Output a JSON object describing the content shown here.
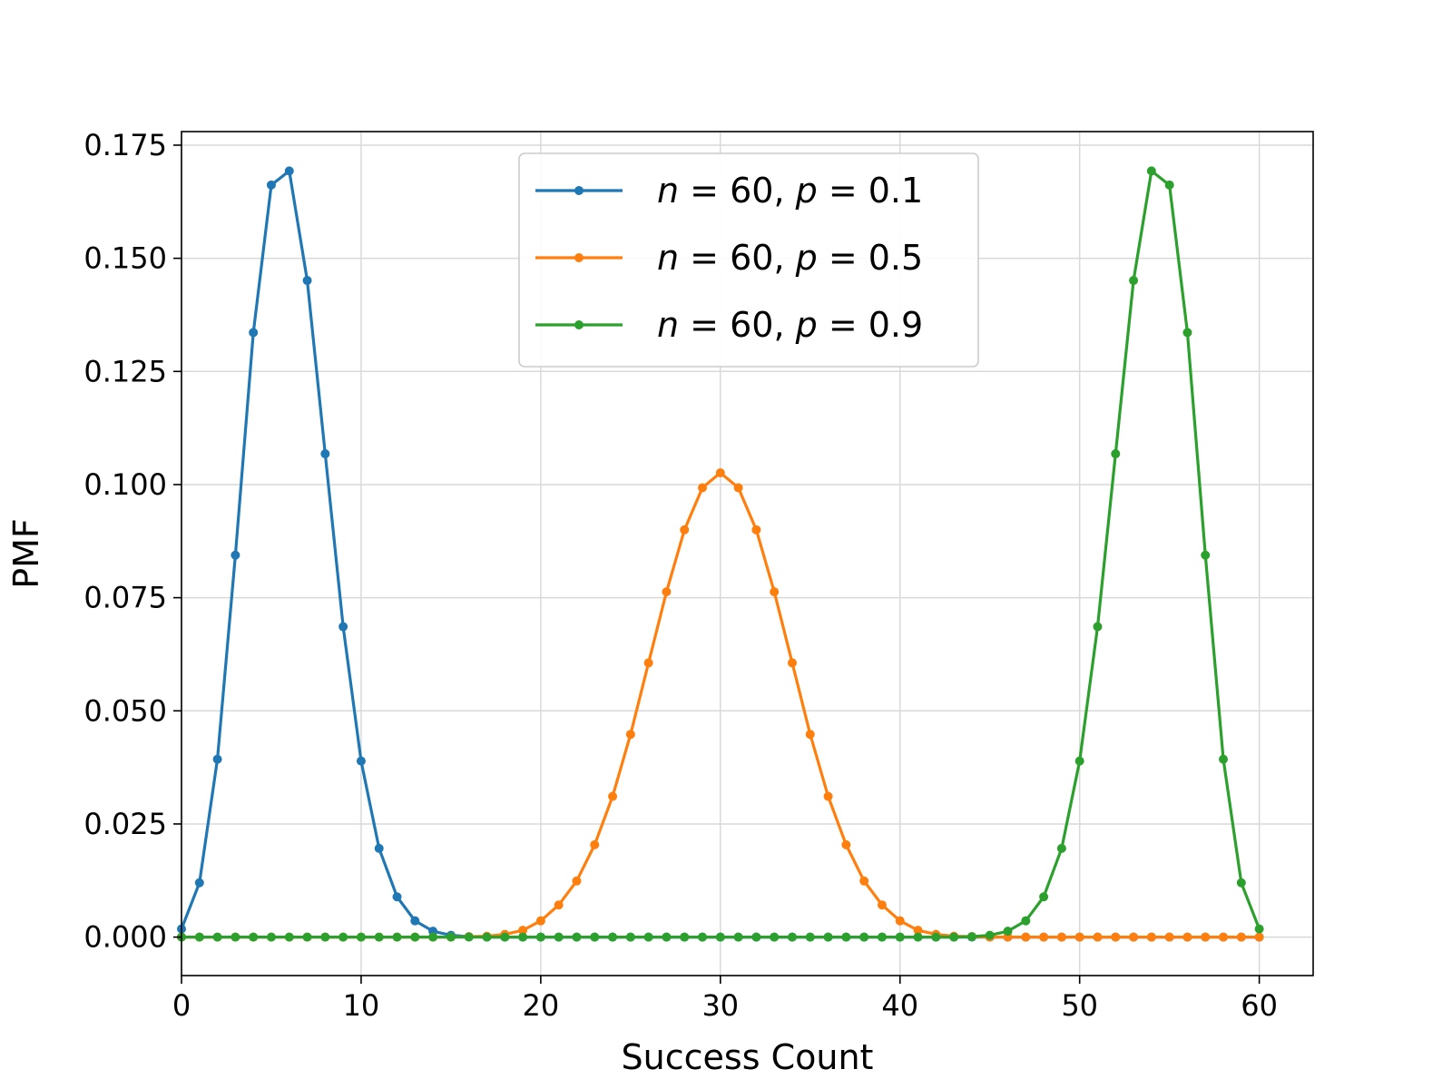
{
  "chart_data": {
    "type": "line",
    "xlabel": "Success Count",
    "ylabel": "PMF",
    "xlim": [
      -0.0,
      63.0
    ],
    "ylim": [
      -0.0085,
      0.178
    ],
    "xticks": [
      0,
      10,
      20,
      30,
      40,
      50,
      60
    ],
    "xtick_labels": [
      "0",
      "10",
      "20",
      "30",
      "40",
      "50",
      "60"
    ],
    "yticks": [
      0.0,
      0.025,
      0.05,
      0.075,
      0.1,
      0.125,
      0.15,
      0.175
    ],
    "ytick_labels": [
      "0.000",
      "0.025",
      "0.050",
      "0.075",
      "0.100",
      "0.125",
      "0.150",
      "0.175"
    ],
    "grid": true,
    "legend_position": "upper-center",
    "x": [
      0,
      1,
      2,
      3,
      4,
      5,
      6,
      7,
      8,
      9,
      10,
      11,
      12,
      13,
      14,
      15,
      16,
      17,
      18,
      19,
      20,
      21,
      22,
      23,
      24,
      25,
      26,
      27,
      28,
      29,
      30,
      31,
      32,
      33,
      34,
      35,
      36,
      37,
      38,
      39,
      40,
      41,
      42,
      43,
      44,
      45,
      46,
      47,
      48,
      49,
      50,
      51,
      52,
      53,
      54,
      55,
      56,
      57,
      58,
      59,
      60
    ],
    "series": [
      {
        "legend": {
          "n_sym": "n",
          "n_val": "60",
          "p_sym": "p",
          "p_val": "0.1"
        },
        "color": "#1f77b4",
        "values": [
          0.0018,
          0.012,
          0.0393,
          0.0844,
          0.1336,
          0.1662,
          0.1693,
          0.1451,
          0.1068,
          0.0686,
          0.0389,
          0.0196,
          0.0089,
          0.0036,
          0.0013,
          0.0004,
          0.0001,
          0.0,
          0.0,
          0.0,
          0.0,
          0.0,
          0.0,
          0.0,
          0.0,
          0.0,
          0.0,
          0.0,
          0.0,
          0.0,
          0.0,
          0.0,
          0.0,
          0.0,
          0.0,
          0.0,
          0.0,
          0.0,
          0.0,
          0.0,
          0.0,
          0.0,
          0.0,
          0.0,
          0.0,
          0.0,
          0.0,
          0.0,
          0.0,
          0.0,
          0.0,
          0.0,
          0.0,
          0.0,
          0.0,
          0.0,
          0.0,
          0.0,
          0.0,
          0.0,
          0.0
        ]
      },
      {
        "legend": {
          "n_sym": "n",
          "n_val": "60",
          "p_sym": "p",
          "p_val": "0.5"
        },
        "color": "#ff7f0e",
        "values": [
          0.0,
          0.0,
          0.0,
          0.0,
          0.0,
          0.0,
          0.0,
          0.0,
          0.0,
          0.0,
          0.0,
          0.0,
          0.0,
          0.0,
          0.0,
          0.0,
          0.0001,
          0.0002,
          0.0006,
          0.0015,
          0.0036,
          0.0071,
          0.0124,
          0.0204,
          0.0311,
          0.0448,
          0.0606,
          0.0763,
          0.09,
          0.0993,
          0.1026,
          0.0993,
          0.09,
          0.0763,
          0.0606,
          0.0448,
          0.0311,
          0.0204,
          0.0124,
          0.0071,
          0.0036,
          0.0015,
          0.0006,
          0.0002,
          0.0001,
          0.0,
          0.0,
          0.0,
          0.0,
          0.0,
          0.0,
          0.0,
          0.0,
          0.0,
          0.0,
          0.0,
          0.0,
          0.0,
          0.0,
          0.0,
          0.0
        ]
      },
      {
        "legend": {
          "n_sym": "n",
          "n_val": "60",
          "p_sym": "p",
          "p_val": "0.9"
        },
        "color": "#2ca02c",
        "values": [
          0.0,
          0.0,
          0.0,
          0.0,
          0.0,
          0.0,
          0.0,
          0.0,
          0.0,
          0.0,
          0.0,
          0.0,
          0.0,
          0.0,
          0.0,
          0.0,
          0.0,
          0.0,
          0.0,
          0.0,
          0.0,
          0.0,
          0.0,
          0.0,
          0.0,
          0.0,
          0.0,
          0.0,
          0.0,
          0.0,
          0.0,
          0.0,
          0.0,
          0.0,
          0.0,
          0.0,
          0.0,
          0.0,
          0.0,
          0.0,
          0.0,
          0.0,
          0.0,
          0.0,
          0.0001,
          0.0004,
          0.0013,
          0.0036,
          0.0089,
          0.0196,
          0.0389,
          0.0686,
          0.1068,
          0.1451,
          0.1693,
          0.1662,
          0.1336,
          0.0844,
          0.0393,
          0.012,
          0.0018
        ]
      }
    ]
  }
}
